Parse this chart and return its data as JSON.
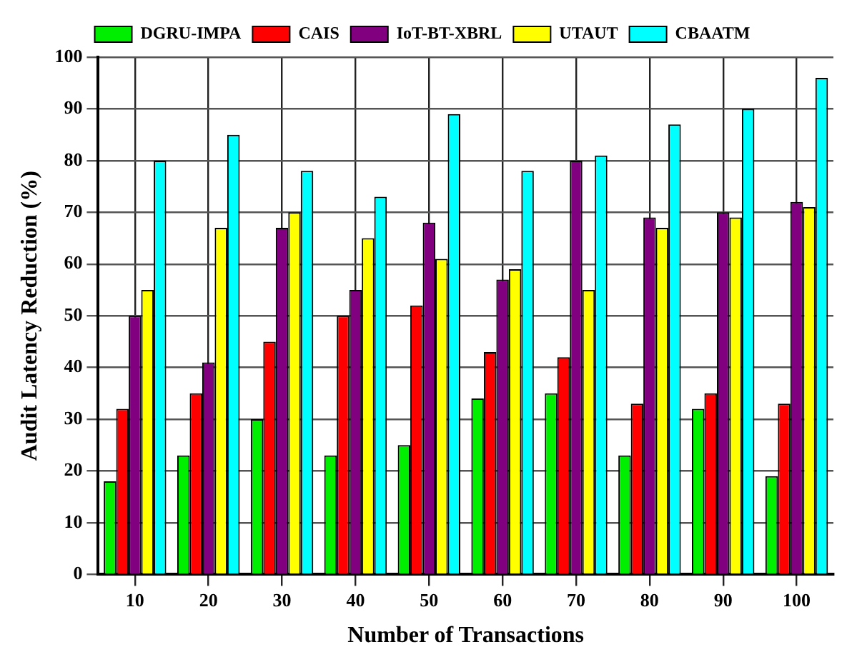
{
  "chart_data": {
    "type": "bar",
    "xlabel": "Number of Transactions",
    "ylabel": "Audit Latency Reduction (%)",
    "categories": [
      "10",
      "20",
      "30",
      "40",
      "50",
      "60",
      "70",
      "80",
      "90",
      "100"
    ],
    "series": [
      {
        "name": "DGRU-IMPA",
        "color": "#00ee00",
        "values": [
          18,
          23,
          30,
          23,
          25,
          34,
          35,
          23,
          32,
          19
        ]
      },
      {
        "name": "CAIS",
        "color": "#ff0000",
        "values": [
          32,
          35,
          45,
          50,
          52,
          43,
          42,
          33,
          35,
          33
        ]
      },
      {
        "name": "IoT-BT-XBRL",
        "color": "#800080",
        "values": [
          50,
          41,
          67,
          55,
          68,
          57,
          80,
          69,
          70,
          72
        ]
      },
      {
        "name": "UTAUT",
        "color": "#ffff00",
        "values": [
          55,
          67,
          70,
          65,
          61,
          59,
          55,
          67,
          69,
          71
        ]
      },
      {
        "name": "CBAATM",
        "color": "#00ffff",
        "values": [
          80,
          85,
          78,
          73,
          89,
          78,
          81,
          87,
          90,
          96
        ]
      }
    ],
    "ylim": [
      0,
      100
    ],
    "yticks": [
      0,
      10,
      20,
      30,
      40,
      50,
      60,
      70,
      80,
      90,
      100
    ],
    "grid": true,
    "legend": "top"
  }
}
